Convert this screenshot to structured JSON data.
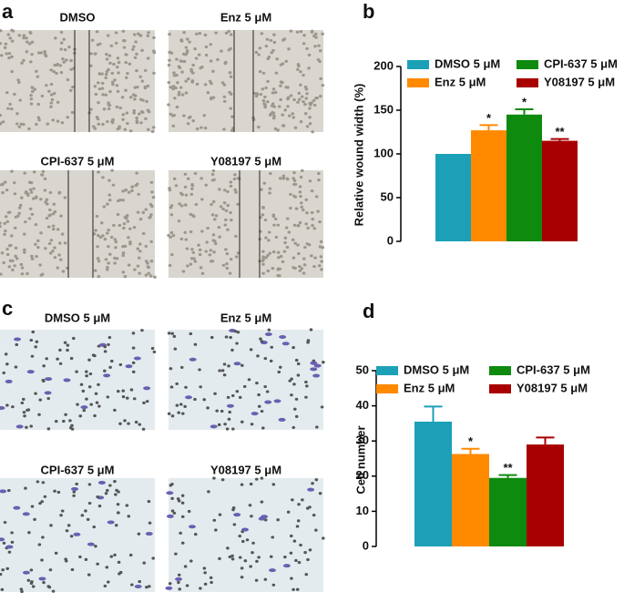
{
  "panel_labels": [
    "a",
    "b",
    "c",
    "d"
  ],
  "captions_a": [
    "DMSO",
    "Enz 5 μM",
    "CPI-637 5 μM",
    "Y08197 5 μM"
  ],
  "captions_c": [
    "DMSO 5 μM",
    "Enz 5 μM",
    "CPI-637 5 μM",
    "Y08197 5 μM"
  ],
  "chart_data": [
    {
      "type": "bar",
      "ylabel": "Relative wound width (%)",
      "ylim": [
        0,
        200
      ],
      "yticks": [
        0,
        50,
        100,
        150,
        200
      ],
      "series": [
        {
          "name": "DMSO 5 μM",
          "color": "#1ba0b8",
          "values": [
            100
          ],
          "errors": [
            0
          ]
        },
        {
          "name": "Enz 5 μM",
          "color": "#ff8a00",
          "values": [
            127
          ],
          "errors": [
            6
          ],
          "annotation": "*"
        },
        {
          "name": "CPI-637 5 μM",
          "color": "#0e8a0e",
          "values": [
            145
          ],
          "errors": [
            6
          ],
          "annotation": "*"
        },
        {
          "name": "Y08197 5 μM",
          "color": "#a80000",
          "values": [
            115
          ],
          "errors": [
            2
          ],
          "annotation": "**"
        }
      ]
    },
    {
      "type": "bar",
      "ylabel": "Cell number",
      "ylim": [
        0,
        50
      ],
      "yticks": [
        0,
        10,
        20,
        30,
        40,
        50
      ],
      "series": [
        {
          "name": "DMSO 5 μM",
          "color": "#1ba0b8",
          "values": [
            35.5
          ],
          "errors": [
            4.3
          ]
        },
        {
          "name": "Enz 5 μM",
          "color": "#ff8a00",
          "values": [
            26.3
          ],
          "errors": [
            1.5
          ],
          "annotation": "*"
        },
        {
          "name": "CPI-637 5 μM",
          "color": "#0e8a0e",
          "values": [
            19.5
          ],
          "errors": [
            0.8
          ],
          "annotation": "**"
        },
        {
          "name": "Y08197 5 μM",
          "color": "#a80000",
          "values": [
            29
          ],
          "errors": [
            2
          ]
        }
      ]
    }
  ]
}
